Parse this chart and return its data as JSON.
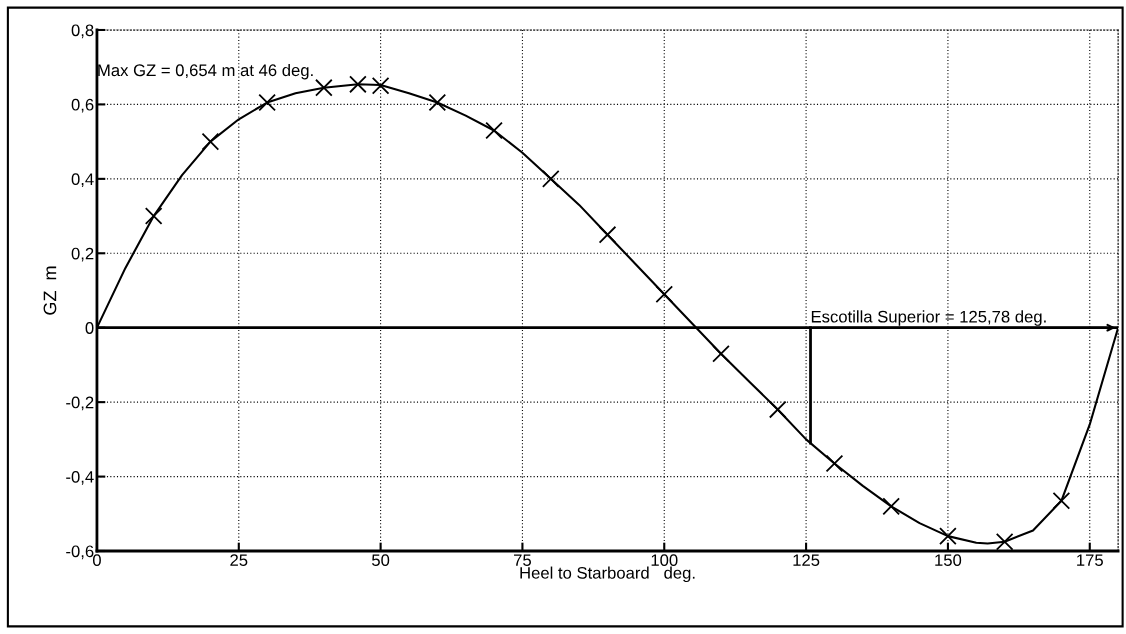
{
  "chart_data": {
    "type": "line",
    "xlabel": "Heel to Starboard   deg.",
    "ylabel": "GZ  m",
    "xlim": [
      0,
      180
    ],
    "ylim": [
      -0.6,
      0.8
    ],
    "xticks": [
      0,
      25,
      50,
      75,
      100,
      125,
      150,
      175
    ],
    "yticks": [
      {
        "value": -0.6,
        "label": "-0,6"
      },
      {
        "value": -0.4,
        "label": "-0,4"
      },
      {
        "value": -0.2,
        "label": "-0,2"
      },
      {
        "value": 0,
        "label": "0"
      },
      {
        "value": 0.2,
        "label": "0,2"
      },
      {
        "value": 0.4,
        "label": "0,4"
      },
      {
        "value": 0.6,
        "label": "0,6"
      },
      {
        "value": 0.8,
        "label": "0,8"
      }
    ],
    "grid": true,
    "series": [
      {
        "color": "#000000",
        "marker": "none",
        "line_style": "solid",
        "x": [
          0,
          5,
          10,
          15,
          20,
          25,
          30,
          35,
          40,
          46,
          50,
          55,
          60,
          65,
          70,
          75,
          80,
          85,
          90,
          95,
          100,
          105,
          110,
          115,
          120,
          125,
          130,
          135,
          140,
          145,
          150,
          155,
          157,
          160,
          165,
          170,
          175,
          180
        ],
        "values": [
          0,
          0.16,
          0.3,
          0.41,
          0.5,
          0.56,
          0.605,
          0.63,
          0.645,
          0.654,
          0.652,
          0.63,
          0.605,
          0.57,
          0.53,
          0.47,
          0.4,
          0.33,
          0.25,
          0.17,
          0.09,
          0.01,
          -0.07,
          -0.145,
          -0.22,
          -0.3,
          -0.365,
          -0.425,
          -0.48,
          -0.525,
          -0.56,
          -0.578,
          -0.58,
          -0.575,
          -0.545,
          -0.465,
          -0.26,
          0
        ]
      },
      {
        "type": "scatter",
        "color": "#000000",
        "marker": "cross",
        "x": [
          10,
          20,
          30,
          40,
          46,
          50,
          60,
          70,
          80,
          90,
          100,
          110,
          120,
          130,
          140,
          150,
          160,
          170
        ],
        "values": [
          0.3,
          0.5,
          0.605,
          0.645,
          0.654,
          0.65,
          0.605,
          0.53,
          0.4,
          0.25,
          0.09,
          -0.07,
          -0.22,
          -0.365,
          -0.48,
          -0.56,
          -0.575,
          -0.465
        ]
      }
    ],
    "ref_lines": [
      {
        "axis": "y",
        "value": 0,
        "color": "#000000"
      },
      {
        "axis": "x",
        "value": 125.78,
        "label": "Escotilla Superior = 125,78 deg.",
        "color": "#000000"
      }
    ],
    "annotations": [
      "Max GZ = 0,654 m at 46 deg."
    ]
  }
}
